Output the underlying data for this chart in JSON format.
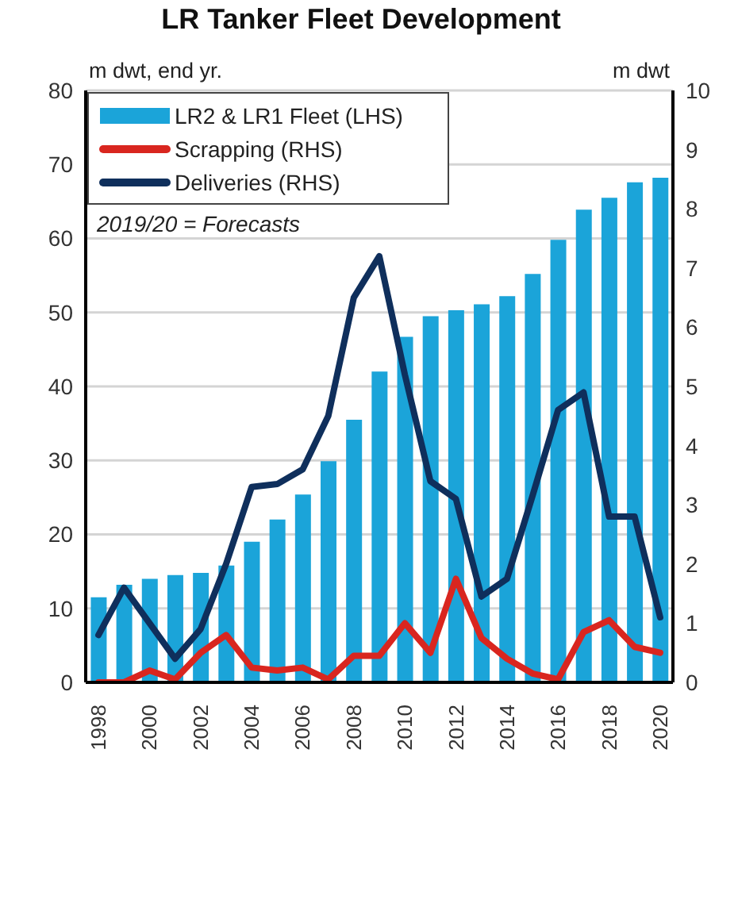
{
  "chart_data": {
    "type": "bar",
    "title": "LR Tanker Fleet Development",
    "ylabel": "m dwt, end yr.",
    "y2label": "m dwt",
    "annotations": [
      "2019/20 = Forecasts"
    ],
    "categories": [
      "1998",
      null,
      "2000",
      null,
      "2002",
      null,
      "2004",
      null,
      "2006",
      null,
      "2008",
      null,
      "2010",
      null,
      "2012",
      null,
      "2014",
      null,
      "2016",
      null,
      "2018",
      null,
      "2020"
    ],
    "series": [
      {
        "name": "LR2 & LR1 Fleet (LHS)",
        "color": "#1ba4d9",
        "values": [
          11.5,
          13.2,
          14.0,
          14.5,
          14.8,
          15.8,
          19.0,
          22.0,
          25.4,
          29.9,
          35.5,
          42.0,
          46.7,
          49.5,
          50.3,
          51.1,
          52.2,
          55.2,
          59.8,
          63.9,
          65.5,
          67.6,
          68.2
        ]
      },
      {
        "name": "Scrapping (RHS)",
        "type": "line",
        "axis": "y2",
        "color": "#d9261f",
        "values": [
          0,
          0,
          0.2,
          0.05,
          0.5,
          0.8,
          0.25,
          0.2,
          0.25,
          0.05,
          0.45,
          0.45,
          1.0,
          0.5,
          1.75,
          0.75,
          0.4,
          0.15,
          0.05,
          0.85,
          1.05,
          0.6,
          0.5
        ]
      },
      {
        "name": "Deliveries (RHS)",
        "type": "line",
        "axis": "y2",
        "color": "#0f2f5c",
        "values": [
          0.8,
          1.6,
          1.0,
          0.4,
          0.9,
          2.0,
          3.3,
          3.35,
          3.6,
          4.5,
          6.5,
          7.2,
          5.2,
          3.4,
          3.1,
          1.45,
          1.75,
          3.15,
          4.6,
          4.9,
          2.8,
          2.8,
          1.1
        ]
      }
    ],
    "ylim": [
      0,
      80
    ],
    "yticks": [
      0,
      10,
      20,
      30,
      40,
      50,
      60,
      70,
      80
    ],
    "y2lim": [
      0,
      10
    ],
    "y2ticks": [
      0,
      1,
      2,
      3,
      4,
      5,
      6,
      7,
      8,
      9,
      10
    ],
    "grid": "y",
    "legend": "top left"
  }
}
